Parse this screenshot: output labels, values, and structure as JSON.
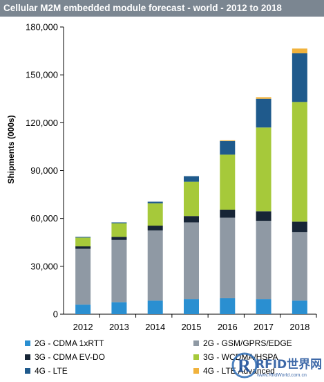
{
  "title": "Cellular M2M embedded module forecast - world - 2012 to 2018",
  "colors": {
    "title_bg": "#7b8691",
    "cdma_1xrtt": "#2a8fd1",
    "gsm": "#8f99a4",
    "evdo": "#172536",
    "wcdma": "#a6c93a",
    "lte": "#1f5a8c",
    "lte_adv": "#f1b23c"
  },
  "watermark": {
    "text": "RFID世界网",
    "sub": "www.RfidWorld.com.cn"
  },
  "chart_data": {
    "type": "bar",
    "stacked": true,
    "title": "Cellular M2M embedded module forecast - world - 2012 to 2018",
    "xlabel": "",
    "ylabel": "Shipments (000s)",
    "ylim": [
      0,
      180000
    ],
    "yticks": [
      0,
      30000,
      60000,
      90000,
      120000,
      150000,
      180000
    ],
    "ytick_labels": [
      "0",
      "30,000",
      "60,000",
      "90,000",
      "120,000",
      "150,000",
      "180,000"
    ],
    "categories": [
      "2012",
      "2013",
      "2014",
      "2015",
      "2016",
      "2017",
      "2018"
    ],
    "grid": false,
    "legend_position": "bottom",
    "series": [
      {
        "name": "2G - CDMA 1xRTT",
        "color": "#2a8fd1",
        "values": [
          6000,
          7500,
          8500,
          9500,
          10000,
          9500,
          8500
        ]
      },
      {
        "name": "2G - GSM/GPRS/EDGE",
        "color": "#8f99a4",
        "values": [
          35000,
          39000,
          44000,
          48000,
          50500,
          49000,
          43000
        ]
      },
      {
        "name": "3G - CDMA EV-DO",
        "color": "#172536",
        "values": [
          1500,
          2000,
          3000,
          4000,
          5000,
          6000,
          6500
        ]
      },
      {
        "name": "3G - WCDMA/HSPA",
        "color": "#a6c93a",
        "values": [
          5500,
          8500,
          14000,
          21500,
          34500,
          52500,
          75000
        ]
      },
      {
        "name": "4G - LTE",
        "color": "#1f5a8c",
        "values": [
          500,
          500,
          1000,
          3500,
          8500,
          18000,
          30500
        ]
      },
      {
        "name": "4G - LTE Advanced",
        "color": "#f1b23c",
        "values": [
          0,
          0,
          0,
          0,
          500,
          1000,
          3000
        ]
      }
    ]
  }
}
